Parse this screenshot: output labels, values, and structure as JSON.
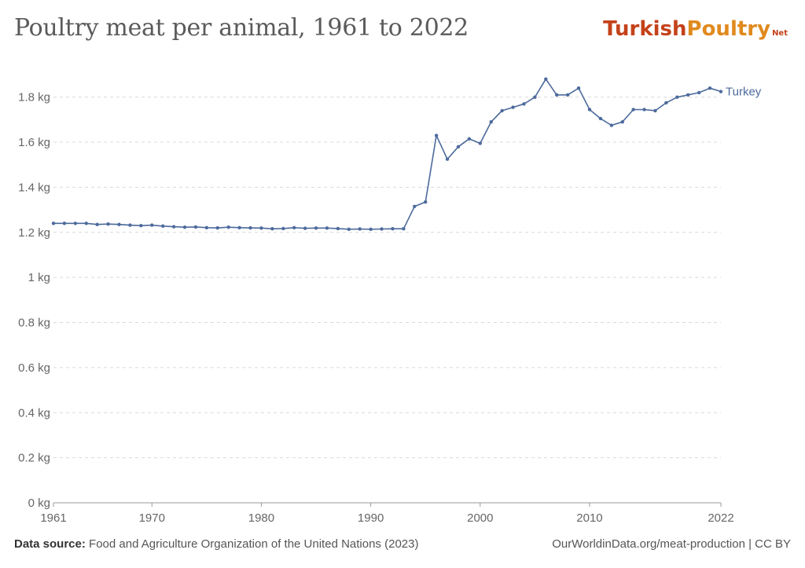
{
  "title": "Poultry meat per animal, 1961 to 2022",
  "logo": {
    "part1": "Turkish ",
    "part2": "Poultry",
    "part3": "Net"
  },
  "footer": {
    "source_label": "Data source:",
    "source_text": "Food and Agriculture Organization of the United Nations (2023)",
    "url_text": "OurWorldinData.org/meat-production | CC BY"
  },
  "colors": {
    "series": "#4c6a9c",
    "grid": "#d9d9d9",
    "text": "#666666"
  },
  "chart_data": {
    "type": "line",
    "title": "Poultry meat per animal, 1961 to 2022",
    "xlabel": "",
    "ylabel": "",
    "xlim": [
      1961,
      2022
    ],
    "ylim": [
      0,
      1.9
    ],
    "x_ticks": [
      1961,
      1970,
      1980,
      1990,
      2000,
      2010,
      2022
    ],
    "y_ticks": [
      {
        "value": 0,
        "label": "0 kg"
      },
      {
        "value": 0.2,
        "label": "0.2 kg"
      },
      {
        "value": 0.4,
        "label": "0.4 kg"
      },
      {
        "value": 0.6,
        "label": "0.6 kg"
      },
      {
        "value": 0.8,
        "label": "0.8 kg"
      },
      {
        "value": 1.0,
        "label": "1 kg"
      },
      {
        "value": 1.2,
        "label": "1.2 kg"
      },
      {
        "value": 1.4,
        "label": "1.4 kg"
      },
      {
        "value": 1.6,
        "label": "1.6 kg"
      },
      {
        "value": 1.8,
        "label": "1.8 kg"
      }
    ],
    "grid": true,
    "series": [
      {
        "name": "Turkey",
        "x": [
          1961,
          1962,
          1963,
          1964,
          1965,
          1966,
          1967,
          1968,
          1969,
          1970,
          1971,
          1972,
          1973,
          1974,
          1975,
          1976,
          1977,
          1978,
          1979,
          1980,
          1981,
          1982,
          1983,
          1984,
          1985,
          1986,
          1987,
          1988,
          1989,
          1990,
          1991,
          1992,
          1993,
          1994,
          1995,
          1996,
          1997,
          1998,
          1999,
          2000,
          2001,
          2002,
          2003,
          2004,
          2005,
          2006,
          2007,
          2008,
          2009,
          2010,
          2011,
          2012,
          2013,
          2014,
          2015,
          2016,
          2017,
          2018,
          2019,
          2020,
          2021,
          2022
        ],
        "values": [
          1.24,
          1.24,
          1.24,
          1.24,
          1.235,
          1.237,
          1.235,
          1.232,
          1.23,
          1.232,
          1.228,
          1.225,
          1.223,
          1.224,
          1.221,
          1.22,
          1.223,
          1.221,
          1.22,
          1.219,
          1.216,
          1.217,
          1.221,
          1.218,
          1.219,
          1.219,
          1.217,
          1.214,
          1.215,
          1.214,
          1.215,
          1.216,
          1.216,
          1.315,
          1.335,
          1.63,
          1.525,
          1.58,
          1.615,
          1.595,
          1.69,
          1.74,
          1.755,
          1.77,
          1.8,
          1.88,
          1.81,
          1.81,
          1.84,
          1.745,
          1.705,
          1.675,
          1.69,
          1.745,
          1.745,
          1.74,
          1.775,
          1.8,
          1.81,
          1.82,
          1.84,
          1.825
        ]
      }
    ]
  }
}
